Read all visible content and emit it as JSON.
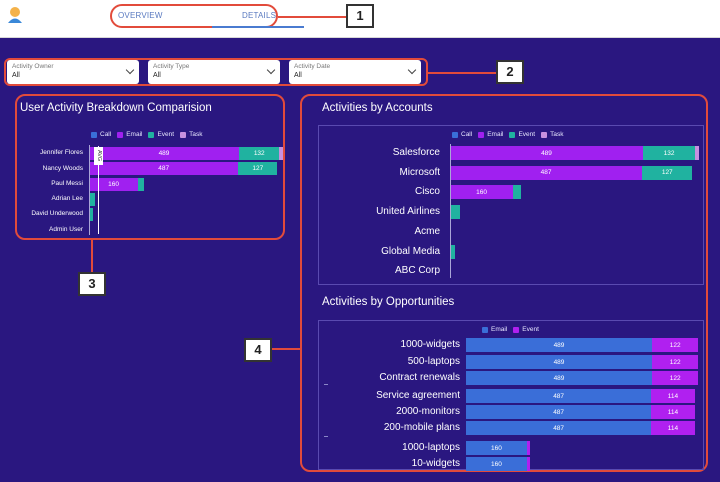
{
  "header": {
    "tabs": [
      {
        "label": "OVERVIEW"
      },
      {
        "label": "DETAILS"
      }
    ]
  },
  "callouts": [
    "1",
    "2",
    "3",
    "4"
  ],
  "filters": [
    {
      "label": "Activity Owner",
      "value": "All"
    },
    {
      "label": "Activity Type",
      "value": "All"
    },
    {
      "label": "Activity Date",
      "value": "All"
    }
  ],
  "colors": {
    "call": "#3a6ed8",
    "email": "#a020f0",
    "event": "#20b2a0",
    "task": "#c890e0"
  },
  "avg_label": "AVG",
  "chart_data": [
    {
      "type": "bar",
      "title": "User Activity Breakdown Comparision",
      "legend": [
        "Call",
        "Email",
        "Event",
        "Task"
      ],
      "categories": [
        "Jennifer Flores",
        "Nancy Woods",
        "Paul Messi",
        "Adrian Lee",
        "David Underwood",
        "Admin User"
      ],
      "series": [
        {
          "name": "Call",
          "values": [
            0,
            0,
            0,
            0,
            0,
            0
          ]
        },
        {
          "name": "Email",
          "values": [
            489,
            487,
            160,
            0,
            0,
            0
          ]
        },
        {
          "name": "Event",
          "values": [
            132,
            127,
            20,
            20,
            12,
            0
          ]
        },
        {
          "name": "Task",
          "values": [
            10,
            0,
            0,
            0,
            0,
            0
          ]
        }
      ],
      "data_labels": [
        [
          "489",
          "132"
        ],
        [
          "487",
          "127"
        ],
        [
          "160"
        ],
        [],
        [],
        []
      ]
    },
    {
      "type": "bar",
      "title": "Activities by Accounts",
      "legend": [
        "Call",
        "Email",
        "Event",
        "Task"
      ],
      "categories": [
        "Salesforce",
        "Microsoft",
        "Cisco",
        "United Airlines",
        "Acme",
        "Global Media",
        "ABC Corp"
      ],
      "series": [
        {
          "name": "Call",
          "values": [
            0,
            0,
            0,
            0,
            0,
            0,
            0
          ]
        },
        {
          "name": "Email",
          "values": [
            489,
            487,
            160,
            0,
            0,
            0,
            0
          ]
        },
        {
          "name": "Event",
          "values": [
            132,
            127,
            20,
            25,
            0,
            12,
            0
          ]
        },
        {
          "name": "Task",
          "values": [
            10,
            0,
            0,
            0,
            0,
            0,
            0
          ]
        }
      ],
      "data_labels": [
        [
          "489",
          "132"
        ],
        [
          "487",
          "127"
        ],
        [
          "160"
        ],
        [],
        [],
        [],
        []
      ]
    },
    {
      "type": "bar",
      "title": "Activities by Opportunities",
      "legend": [
        "Email",
        "Event"
      ],
      "categories": [
        "1000-widgets",
        "500-laptops",
        "Contract renewals",
        "Service agreement",
        "2000-monitors",
        "200-mobile plans",
        "1000-laptops",
        "10-widgets"
      ],
      "series": [
        {
          "name": "Email",
          "values": [
            489,
            489,
            489,
            487,
            487,
            487,
            160,
            160
          ]
        },
        {
          "name": "Event",
          "values": [
            122,
            122,
            122,
            114,
            114,
            114,
            8,
            8
          ]
        }
      ],
      "data_labels": [
        [
          "489",
          "122"
        ],
        [
          "489",
          "122"
        ],
        [
          "489",
          "122"
        ],
        [
          "487",
          "114"
        ],
        [
          "487",
          "114"
        ],
        [
          "487",
          "114"
        ],
        [
          "160"
        ],
        [
          "160"
        ]
      ]
    }
  ]
}
